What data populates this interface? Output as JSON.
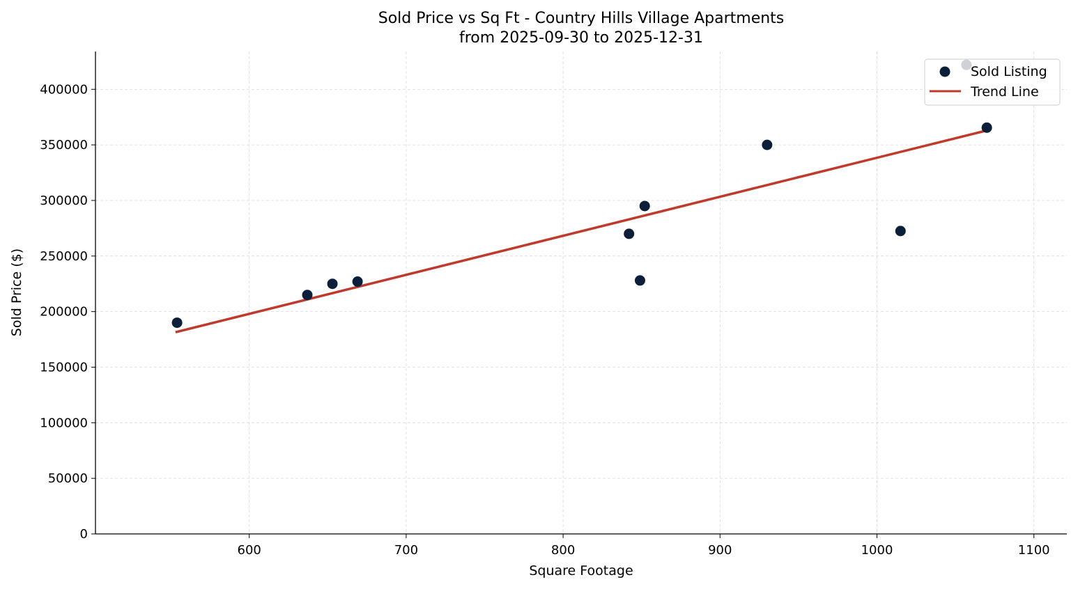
{
  "chart_data": {
    "type": "scatter",
    "title": "Sold Price vs Sq Ft - Country Hills Village Apartments",
    "subtitle": "from 2025-09-30 to 2025-12-31",
    "xlabel": "Square Footage",
    "ylabel": "Sold Price ($)",
    "xlim": [
      502,
      1121
    ],
    "ylim": [
      0,
      434000
    ],
    "xticks": [
      600,
      700,
      800,
      900,
      1000,
      1100
    ],
    "yticks": [
      0,
      50000,
      100000,
      150000,
      200000,
      250000,
      300000,
      350000,
      400000
    ],
    "grid": true,
    "legend_position": "top-right",
    "series": [
      {
        "name": "Sold Listing",
        "type": "scatter",
        "color": "#0b1f3a",
        "points": [
          {
            "x": 554,
            "y": 190000
          },
          {
            "x": 637,
            "y": 215000
          },
          {
            "x": 653,
            "y": 225000
          },
          {
            "x": 669,
            "y": 227000
          },
          {
            "x": 842,
            "y": 270000
          },
          {
            "x": 852,
            "y": 295000
          },
          {
            "x": 849,
            "y": 228000
          },
          {
            "x": 930,
            "y": 350000
          },
          {
            "x": 1015,
            "y": 272500
          },
          {
            "x": 1070,
            "y": 365500
          },
          {
            "x": 1057,
            "y": 422000
          }
        ]
      },
      {
        "name": "Trend Line",
        "type": "line",
        "color": "#c0392b",
        "points": [
          {
            "x": 553,
            "y": 181500
          },
          {
            "x": 1070,
            "y": 363000
          }
        ]
      }
    ]
  }
}
